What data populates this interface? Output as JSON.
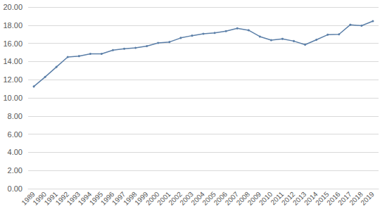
{
  "chart_data": {
    "type": "line",
    "categories": [
      "1989",
      "1990",
      "1991",
      "1992",
      "1993",
      "1994",
      "1995",
      "1996",
      "1997",
      "1998",
      "1999",
      "2000",
      "2001",
      "2002",
      "2003",
      "2004",
      "2005",
      "2006",
      "2007",
      "2008",
      "2009",
      "2010",
      "2011",
      "2012",
      "2013",
      "2014",
      "2015",
      "2016",
      "2017",
      "2018",
      "2019"
    ],
    "values": [
      11.25,
      12.3,
      13.4,
      14.5,
      14.6,
      14.85,
      14.85,
      15.25,
      15.4,
      15.5,
      15.7,
      16.05,
      16.15,
      16.6,
      16.85,
      17.05,
      17.15,
      17.35,
      17.65,
      17.45,
      16.75,
      16.35,
      16.5,
      16.25,
      15.85,
      16.4,
      16.95,
      17.0,
      18.05,
      17.95,
      18.45
    ],
    "color": "#5b7fa8",
    "marker": "circle",
    "ylim": [
      0,
      20
    ],
    "yticks": [
      {
        "value": 0,
        "label": "0.00"
      },
      {
        "value": 2,
        "label": "2.00"
      },
      {
        "value": 4,
        "label": "4.00"
      },
      {
        "value": 6,
        "label": "6.00"
      },
      {
        "value": 8,
        "label": "8.00"
      },
      {
        "value": 10,
        "label": "10.00"
      },
      {
        "value": 12,
        "label": "12.00"
      },
      {
        "value": 14,
        "label": "14.00"
      },
      {
        "value": 16,
        "label": "16.00"
      },
      {
        "value": 18,
        "label": "18.00"
      },
      {
        "value": 20,
        "label": "20.00"
      }
    ],
    "grid": true
  }
}
